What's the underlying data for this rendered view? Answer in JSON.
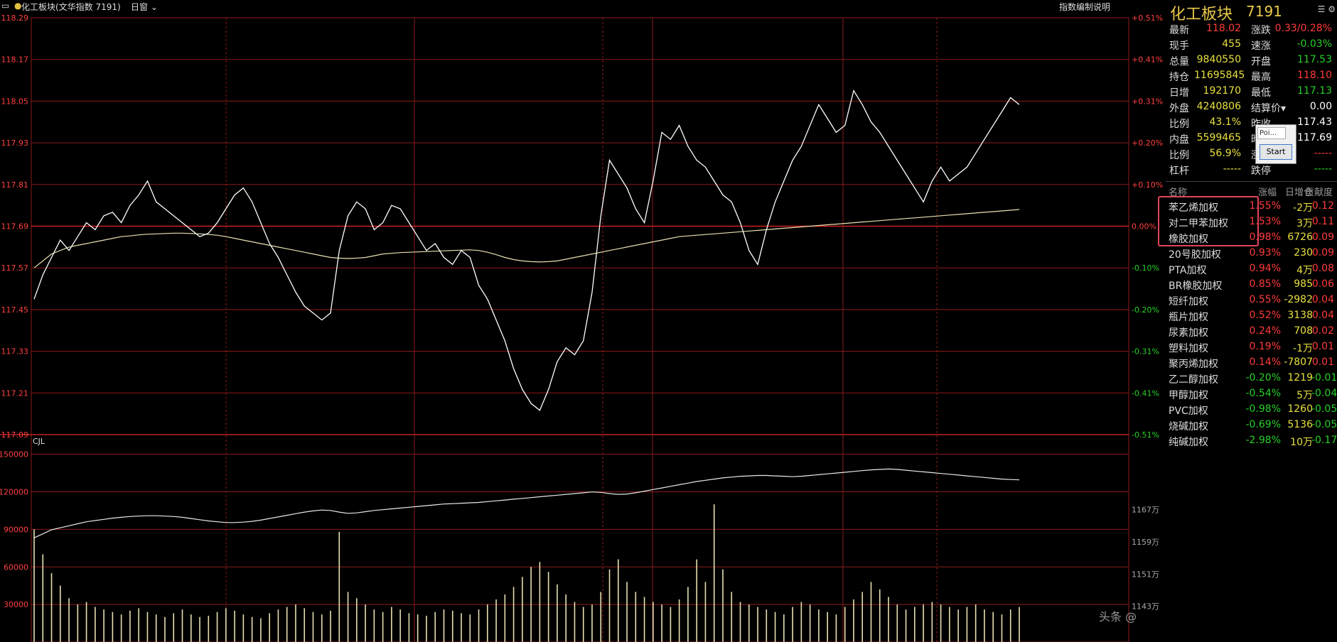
{
  "topbar": {
    "title": "化工板块(文华指数 7191)",
    "period": "日窗",
    "explain_link": "指数编制说明",
    "volume_label": "CJL"
  },
  "colors": {
    "up": "#ff3b3b",
    "down": "#27d027",
    "grid": "#8b1a1a",
    "price_line": "#ffffff",
    "avg_line": "#e8e0b0",
    "title": "#e8c84a"
  },
  "chart_data": [
    {
      "type": "line",
      "title": "",
      "y_left_ticks": [
        "118.29",
        "118.17",
        "118.05",
        "117.93",
        "117.81",
        "117.69",
        "117.57",
        "117.45",
        "117.33",
        "117.21",
        "117.09"
      ],
      "y_right_ticks": [
        "+0.51%",
        "+0.41%",
        "+0.31%",
        "+0.20%",
        "+0.10%",
        "0.00%",
        "-0.10%",
        "-0.20%",
        "-0.31%",
        "-0.41%",
        "-0.51%"
      ],
      "ylim": [
        117.09,
        118.29
      ],
      "prev_settle": 117.69,
      "series": [
        {
          "values": [
            117.48,
            117.55,
            117.6,
            117.65,
            117.62,
            117.66,
            117.7,
            117.68,
            117.72,
            117.73,
            117.7,
            117.75,
            117.78,
            117.82,
            117.76,
            117.74,
            117.72,
            117.7,
            117.68,
            117.66,
            117.67,
            117.7,
            117.74,
            117.78,
            117.8,
            117.76,
            117.7,
            117.64,
            117.6,
            117.55,
            117.5,
            117.46,
            117.44,
            117.42,
            117.44,
            117.62,
            117.72,
            117.76,
            117.74,
            117.68,
            117.7,
            117.75,
            117.74,
            117.7,
            117.66,
            117.62,
            117.64,
            117.6,
            117.58,
            117.62,
            117.6,
            117.52,
            117.48,
            117.42,
            117.36,
            117.28,
            117.22,
            117.18,
            117.16,
            117.22,
            117.3,
            117.34,
            117.32,
            117.36,
            117.5,
            117.72,
            117.88,
            117.84,
            117.8,
            117.74,
            117.7,
            117.82,
            117.96,
            117.94,
            117.98,
            117.92,
            117.88,
            117.86,
            117.82,
            117.78,
            117.76,
            117.7,
            117.62,
            117.58,
            117.68,
            117.76,
            117.82,
            117.88,
            117.92,
            117.98,
            118.04,
            118.0,
            117.96,
            117.98,
            118.08,
            118.04,
            117.99,
            117.96,
            117.92,
            117.88,
            117.84,
            117.8,
            117.76,
            117.82,
            117.86,
            117.82,
            117.84,
            117.86,
            117.9,
            117.94,
            117.98,
            118.02,
            118.06,
            118.04
          ]
        },
        {
          "values": [
            117.57,
            117.59,
            117.61,
            117.62,
            117.63,
            117.635,
            117.64,
            117.645,
            117.65,
            117.655,
            117.66,
            117.662,
            117.665,
            117.667,
            117.668,
            117.669,
            117.67,
            117.67,
            117.669,
            117.668,
            117.666,
            117.664,
            117.66,
            117.655,
            117.65,
            117.645,
            117.64,
            117.635,
            117.63,
            117.625,
            117.62,
            117.615,
            117.61,
            117.605,
            117.6,
            117.598,
            117.597,
            117.598,
            117.6,
            117.605,
            117.61,
            117.612,
            117.614,
            117.615,
            117.616,
            117.617,
            117.618,
            117.619,
            117.62,
            117.621,
            117.622,
            117.62,
            117.615,
            117.608,
            117.6,
            117.594,
            117.59,
            117.588,
            117.587,
            117.588,
            117.59,
            117.595,
            117.6,
            117.605,
            117.61,
            117.615,
            117.62,
            117.625,
            117.63,
            117.635,
            117.64,
            117.645,
            117.65,
            117.655,
            117.66,
            117.662,
            117.664,
            117.666,
            117.668,
            117.67,
            117.672,
            117.674,
            117.676,
            117.678,
            117.68,
            117.682,
            117.684,
            117.686,
            117.688,
            117.69,
            117.692,
            117.694,
            117.696,
            117.698,
            117.7,
            117.702,
            117.704,
            117.706,
            117.708,
            117.71,
            117.712,
            117.714,
            117.716,
            117.718,
            117.72,
            117.722,
            117.724,
            117.726,
            117.728,
            117.73,
            117.732,
            117.734,
            117.736,
            117.738
          ]
        }
      ]
    },
    {
      "type": "bar",
      "title": "",
      "y_left_ticks": [
        "150000",
        "120000",
        "90000",
        "60000",
        "30000"
      ],
      "y_right_ticks": [
        "1167万",
        "1159万",
        "1151万",
        "1143万"
      ],
      "ylim": [
        0,
        160000
      ],
      "series": [
        {
          "values": [
            90000,
            70000,
            55000,
            45000,
            35000,
            30000,
            32000,
            28000,
            26000,
            24000,
            22000,
            25000,
            27000,
            24000,
            22000,
            20000,
            23000,
            26000,
            22000,
            20000,
            21000,
            24000,
            27000,
            25000,
            22000,
            20000,
            19000,
            23000,
            26000,
            28000,
            30000,
            27000,
            24000,
            22000,
            25000,
            88000,
            40000,
            35000,
            30000,
            26000,
            24000,
            28000,
            26000,
            23000,
            22000,
            21000,
            24000,
            26000,
            25000,
            23000,
            22000,
            26000,
            30000,
            34000,
            38000,
            44000,
            52000,
            60000,
            64000,
            56000,
            46000,
            38000,
            32000,
            28000,
            30000,
            40000,
            58000,
            66000,
            48000,
            40000,
            36000,
            32000,
            30000,
            28000,
            34000,
            44000,
            66000,
            48000,
            110000,
            58000,
            40000,
            32000,
            30000,
            28000,
            26000,
            24000,
            22000,
            28000,
            32000,
            30000,
            26000,
            24000,
            22000,
            28000,
            34000,
            40000,
            48000,
            42000,
            36000,
            30000,
            26000,
            28000,
            30000,
            32000,
            30000,
            28000,
            26000,
            28000,
            30000,
            26000,
            24000,
            22000,
            26000,
            28000
          ]
        },
        {
          "values": [
            1160,
            1161,
            1162,
            1162.5,
            1163,
            1163.5,
            1164,
            1164.3,
            1164.6,
            1164.9,
            1165.1,
            1165.3,
            1165.4,
            1165.5,
            1165.5,
            1165.4,
            1165.3,
            1165.1,
            1164.8,
            1164.5,
            1164.2,
            1164.0,
            1163.8,
            1163.8,
            1163.9,
            1164.1,
            1164.4,
            1164.8,
            1165.2,
            1165.6,
            1166.0,
            1166.4,
            1166.7,
            1166.9,
            1166.8,
            1166.4,
            1166.1,
            1166.2,
            1166.5,
            1166.8,
            1167.0,
            1167.2,
            1167.4,
            1167.6,
            1167.8,
            1168.0,
            1168.2,
            1168.4,
            1168.5,
            1168.6,
            1168.7,
            1168.8,
            1169.0,
            1169.2,
            1169.4,
            1169.6,
            1169.8,
            1170.0,
            1170.2,
            1170.4,
            1170.6,
            1170.8,
            1171.0,
            1171.2,
            1171.4,
            1171.3,
            1171.0,
            1170.8,
            1170.9,
            1171.2,
            1171.6,
            1172.0,
            1172.4,
            1172.8,
            1173.2,
            1173.6,
            1174.0,
            1174.3,
            1174.6,
            1174.9,
            1175.1,
            1175.3,
            1175.4,
            1175.5,
            1175.5,
            1175.4,
            1175.3,
            1175.2,
            1175.3,
            1175.5,
            1175.7,
            1175.9,
            1176.1,
            1176.3,
            1176.5,
            1176.7,
            1176.9,
            1177.0,
            1177.1,
            1177.0,
            1176.8,
            1176.6,
            1176.4,
            1176.2,
            1176.0,
            1175.8,
            1175.6,
            1175.4,
            1175.2,
            1175.0,
            1174.8,
            1174.6,
            1174.5,
            1174.4
          ]
        }
      ]
    }
  ],
  "panel": {
    "title": "化工板块",
    "code": "7191",
    "icons": "☰ ⚙",
    "quote": [
      {
        "l1": "最新",
        "v1": "118.02",
        "c1": "red",
        "l2": "涨跌",
        "v2": "0.33/0.28%",
        "c2": "red"
      },
      {
        "l1": "现手",
        "v1": "455",
        "c1": "yellow",
        "l2": "速涨",
        "v2": "-0.03%",
        "c2": "green"
      },
      {
        "l1": "总量",
        "v1": "9840550",
        "c1": "yellow",
        "l2": "开盘",
        "v2": "117.53",
        "c2": "green"
      },
      {
        "l1": "持仓",
        "v1": "11695845",
        "c1": "yellow",
        "l2": "最高",
        "v2": "118.10",
        "c2": "red"
      },
      {
        "l1": "日增",
        "v1": "192170",
        "c1": "yellow",
        "l2": "最低",
        "v2": "117.13",
        "c2": "green"
      },
      {
        "l1": "外盘",
        "v1": "4240806",
        "c1": "yellow",
        "l2": "结算价▾",
        "v2": "0.00",
        "c2": "white"
      },
      {
        "l1": "比例",
        "v1": "43.1%",
        "c1": "yellow",
        "l2": "昨收",
        "v2": "117.43",
        "c2": "white"
      },
      {
        "l1": "内盘",
        "v1": "5599465",
        "c1": "yellow",
        "l2": "昨结",
        "v2": "117.69",
        "c2": "white"
      },
      {
        "l1": "比例",
        "v1": "56.9%",
        "c1": "yellow",
        "l2": "涨停",
        "v2": "-----",
        "c2": "red"
      },
      {
        "l1": "杠杆",
        "v1": "-----",
        "c1": "yellow",
        "l2": "跌停",
        "v2": "-----",
        "c2": "green"
      }
    ],
    "table_headers": {
      "name": "名称",
      "pct": "涨幅",
      "inc": "日增仓",
      "ctb": "贡献度"
    },
    "rows": [
      {
        "name": "苯乙烯加权",
        "pct": "1.55%",
        "pc": "red",
        "inc": "-2万",
        "ic": "yellow",
        "ctb": "0.12",
        "cc": "red"
      },
      {
        "name": "对二甲苯加权",
        "pct": "1.53%",
        "pc": "red",
        "inc": "3万",
        "ic": "yellow",
        "ctb": "0.11",
        "cc": "red"
      },
      {
        "name": "橡胶加权",
        "pct": "0.98%",
        "pc": "red",
        "inc": "6726",
        "ic": "yellow",
        "ctb": "0.09",
        "cc": "red"
      },
      {
        "name": "20号胶加权",
        "pct": "0.93%",
        "pc": "red",
        "inc": "230",
        "ic": "yellow",
        "ctb": "0.09",
        "cc": "red"
      },
      {
        "name": "PTA加权",
        "pct": "0.94%",
        "pc": "red",
        "inc": "4万",
        "ic": "yellow",
        "ctb": "0.08",
        "cc": "red"
      },
      {
        "name": "BR橡胶加权",
        "pct": "0.85%",
        "pc": "red",
        "inc": "985",
        "ic": "yellow",
        "ctb": "0.06",
        "cc": "red"
      },
      {
        "name": "短纤加权",
        "pct": "0.55%",
        "pc": "red",
        "inc": "-2982",
        "ic": "yellow",
        "ctb": "0.04",
        "cc": "red"
      },
      {
        "name": "瓶片加权",
        "pct": "0.52%",
        "pc": "red",
        "inc": "3138",
        "ic": "yellow",
        "ctb": "0.04",
        "cc": "red"
      },
      {
        "name": "尿素加权",
        "pct": "0.24%",
        "pc": "red",
        "inc": "708",
        "ic": "yellow",
        "ctb": "0.02",
        "cc": "red"
      },
      {
        "name": "塑料加权",
        "pct": "0.19%",
        "pc": "red",
        "inc": "-1万",
        "ic": "yellow",
        "ctb": "0.01",
        "cc": "red"
      },
      {
        "name": "聚丙烯加权",
        "pct": "0.14%",
        "pc": "red",
        "inc": "-7807",
        "ic": "yellow",
        "ctb": "0.01",
        "cc": "red"
      },
      {
        "name": "乙二醇加权",
        "pct": "-0.20%",
        "pc": "green",
        "inc": "1219",
        "ic": "yellow",
        "ctb": "-0.01",
        "cc": "green"
      },
      {
        "name": "甲醇加权",
        "pct": "-0.54%",
        "pc": "green",
        "inc": "5万",
        "ic": "yellow",
        "ctb": "-0.04",
        "cc": "green"
      },
      {
        "name": "PVC加权",
        "pct": "-0.98%",
        "pc": "green",
        "inc": "1260",
        "ic": "yellow",
        "ctb": "-0.05",
        "cc": "green"
      },
      {
        "name": "烧碱加权",
        "pct": "-0.69%",
        "pc": "green",
        "inc": "5136",
        "ic": "yellow",
        "ctb": "-0.05",
        "cc": "green"
      },
      {
        "name": "纯碱加权",
        "pct": "-2.98%",
        "pc": "green",
        "inc": "10万",
        "ic": "yellow",
        "ctb": "-0.17",
        "cc": "green"
      }
    ]
  },
  "popup": {
    "input_value": "Poi...",
    "button_label": "Start"
  },
  "watermark": "头条 @"
}
